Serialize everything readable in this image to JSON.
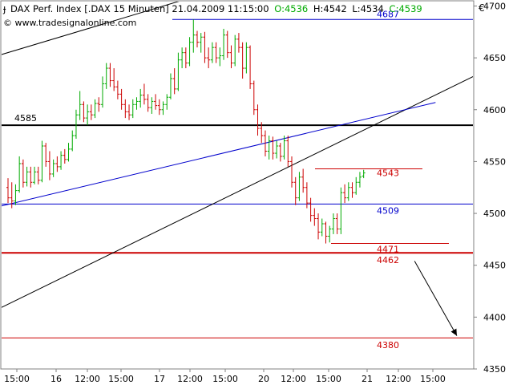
{
  "header": {
    "title": "DAX Perf. Index [.DAX  15 Minuten] 21.04.2009 11:15:00",
    "open": "O:4536",
    "high": "H:4542",
    "low": "L:4534",
    "close": "C:4539",
    "source": "© www.tradesignalonline.com",
    "currency": "€",
    "colors": {
      "open": "#00aa00",
      "close": "#00aa00",
      "text": "#000000"
    }
  },
  "chart_data": {
    "type": "ohlc",
    "ylim": [
      4350,
      4705
    ],
    "y_ticks": [
      4350,
      4400,
      4450,
      4500,
      4550,
      4600,
      4650,
      4700
    ],
    "x_ticks": [
      "15:00",
      "16",
      "12:00",
      "15:00",
      "17",
      "12:00",
      "15:00",
      "20",
      "12:00",
      "15:00",
      "21",
      "12:00",
      "15:00"
    ],
    "colors": {
      "up": "#00aa00",
      "down": "#cc0000"
    },
    "bars": [
      {
        "o": 4525,
        "h": 4534,
        "l": 4510,
        "c": 4515
      },
      {
        "o": 4515,
        "h": 4530,
        "l": 4505,
        "c": 4512
      },
      {
        "o": 4512,
        "h": 4528,
        "l": 4508,
        "c": 4522
      },
      {
        "o": 4522,
        "h": 4555,
        "l": 4520,
        "c": 4548
      },
      {
        "o": 4548,
        "h": 4552,
        "l": 4525,
        "c": 4530
      },
      {
        "o": 4530,
        "h": 4545,
        "l": 4526,
        "c": 4540
      },
      {
        "o": 4540,
        "h": 4545,
        "l": 4525,
        "c": 4530
      },
      {
        "o": 4530,
        "h": 4545,
        "l": 4528,
        "c": 4540
      },
      {
        "o": 4540,
        "h": 4545,
        "l": 4528,
        "c": 4532
      },
      {
        "o": 4532,
        "h": 4570,
        "l": 4530,
        "c": 4565
      },
      {
        "o": 4565,
        "h": 4568,
        "l": 4545,
        "c": 4550
      },
      {
        "o": 4550,
        "h": 4560,
        "l": 4532,
        "c": 4538
      },
      {
        "o": 4538,
        "h": 4552,
        "l": 4535,
        "c": 4548
      },
      {
        "o": 4548,
        "h": 4555,
        "l": 4540,
        "c": 4545
      },
      {
        "o": 4545,
        "h": 4560,
        "l": 4542,
        "c": 4556
      },
      {
        "o": 4556,
        "h": 4562,
        "l": 4548,
        "c": 4552
      },
      {
        "o": 4552,
        "h": 4568,
        "l": 4550,
        "c": 4562
      },
      {
        "o": 4562,
        "h": 4580,
        "l": 4560,
        "c": 4575
      },
      {
        "o": 4575,
        "h": 4600,
        "l": 4572,
        "c": 4595
      },
      {
        "o": 4595,
        "h": 4618,
        "l": 4590,
        "c": 4605
      },
      {
        "o": 4605,
        "h": 4608,
        "l": 4588,
        "c": 4592
      },
      {
        "o": 4592,
        "h": 4605,
        "l": 4585,
        "c": 4598
      },
      {
        "o": 4598,
        "h": 4605,
        "l": 4590,
        "c": 4595
      },
      {
        "o": 4595,
        "h": 4610,
        "l": 4592,
        "c": 4606
      },
      {
        "o": 4606,
        "h": 4612,
        "l": 4598,
        "c": 4605
      },
      {
        "o": 4605,
        "h": 4632,
        "l": 4602,
        "c": 4625
      },
      {
        "o": 4625,
        "h": 4645,
        "l": 4620,
        "c": 4640
      },
      {
        "o": 4640,
        "h": 4645,
        "l": 4622,
        "c": 4628
      },
      {
        "o": 4628,
        "h": 4640,
        "l": 4618,
        "c": 4622
      },
      {
        "o": 4622,
        "h": 4628,
        "l": 4610,
        "c": 4615
      },
      {
        "o": 4615,
        "h": 4620,
        "l": 4600,
        "c": 4605
      },
      {
        "o": 4605,
        "h": 4610,
        "l": 4592,
        "c": 4598
      },
      {
        "o": 4598,
        "h": 4605,
        "l": 4590,
        "c": 4595
      },
      {
        "o": 4595,
        "h": 4610,
        "l": 4592,
        "c": 4605
      },
      {
        "o": 4605,
        "h": 4612,
        "l": 4600,
        "c": 4608
      },
      {
        "o": 4608,
        "h": 4620,
        "l": 4602,
        "c": 4614
      },
      {
        "o": 4614,
        "h": 4625,
        "l": 4605,
        "c": 4610
      },
      {
        "o": 4610,
        "h": 4615,
        "l": 4598,
        "c": 4602
      },
      {
        "o": 4602,
        "h": 4612,
        "l": 4596,
        "c": 4608
      },
      {
        "o": 4608,
        "h": 4615,
        "l": 4600,
        "c": 4604
      },
      {
        "o": 4604,
        "h": 4610,
        "l": 4595,
        "c": 4600
      },
      {
        "o": 4600,
        "h": 4608,
        "l": 4595,
        "c": 4605
      },
      {
        "o": 4605,
        "h": 4615,
        "l": 4600,
        "c": 4612
      },
      {
        "o": 4612,
        "h": 4635,
        "l": 4610,
        "c": 4630
      },
      {
        "o": 4630,
        "h": 4640,
        "l": 4615,
        "c": 4620
      },
      {
        "o": 4620,
        "h": 4655,
        "l": 4618,
        "c": 4648
      },
      {
        "o": 4648,
        "h": 4660,
        "l": 4640,
        "c": 4655
      },
      {
        "o": 4655,
        "h": 4660,
        "l": 4640,
        "c": 4645
      },
      {
        "o": 4645,
        "h": 4670,
        "l": 4642,
        "c": 4665
      },
      {
        "o": 4665,
        "h": 4687,
        "l": 4655,
        "c": 4672
      },
      {
        "o": 4672,
        "h": 4676,
        "l": 4660,
        "c": 4665
      },
      {
        "o": 4665,
        "h": 4674,
        "l": 4655,
        "c": 4670
      },
      {
        "o": 4670,
        "h": 4675,
        "l": 4645,
        "c": 4650
      },
      {
        "o": 4650,
        "h": 4660,
        "l": 4640,
        "c": 4648
      },
      {
        "o": 4648,
        "h": 4665,
        "l": 4645,
        "c": 4660
      },
      {
        "o": 4660,
        "h": 4665,
        "l": 4645,
        "c": 4650
      },
      {
        "o": 4650,
        "h": 4660,
        "l": 4642,
        "c": 4652
      },
      {
        "o": 4652,
        "h": 4678,
        "l": 4648,
        "c": 4672
      },
      {
        "o": 4672,
        "h": 4676,
        "l": 4650,
        "c": 4655
      },
      {
        "o": 4655,
        "h": 4662,
        "l": 4640,
        "c": 4645
      },
      {
        "o": 4645,
        "h": 4672,
        "l": 4642,
        "c": 4668
      },
      {
        "o": 4668,
        "h": 4674,
        "l": 4655,
        "c": 4660
      },
      {
        "o": 4660,
        "h": 4665,
        "l": 4630,
        "c": 4640
      },
      {
        "o": 4640,
        "h": 4665,
        "l": 4635,
        "c": 4660
      },
      {
        "o": 4660,
        "h": 4662,
        "l": 4620,
        "c": 4625
      },
      {
        "o": 4625,
        "h": 4628,
        "l": 4595,
        "c": 4600
      },
      {
        "o": 4600,
        "h": 4605,
        "l": 4575,
        "c": 4582
      },
      {
        "o": 4582,
        "h": 4588,
        "l": 4568,
        "c": 4575
      },
      {
        "o": 4575,
        "h": 4580,
        "l": 4555,
        "c": 4560
      },
      {
        "o": 4560,
        "h": 4575,
        "l": 4552,
        "c": 4570
      },
      {
        "o": 4570,
        "h": 4574,
        "l": 4552,
        "c": 4558
      },
      {
        "o": 4558,
        "h": 4570,
        "l": 4553,
        "c": 4565
      },
      {
        "o": 4565,
        "h": 4568,
        "l": 4550,
        "c": 4555
      },
      {
        "o": 4555,
        "h": 4575,
        "l": 4552,
        "c": 4570
      },
      {
        "o": 4570,
        "h": 4575,
        "l": 4545,
        "c": 4550
      },
      {
        "o": 4550,
        "h": 4555,
        "l": 4525,
        "c": 4530
      },
      {
        "o": 4530,
        "h": 4535,
        "l": 4508,
        "c": 4515
      },
      {
        "o": 4515,
        "h": 4540,
        "l": 4512,
        "c": 4535
      },
      {
        "o": 4535,
        "h": 4543,
        "l": 4520,
        "c": 4525
      },
      {
        "o": 4525,
        "h": 4530,
        "l": 4505,
        "c": 4510
      },
      {
        "o": 4510,
        "h": 4515,
        "l": 4492,
        "c": 4498
      },
      {
        "o": 4498,
        "h": 4505,
        "l": 4488,
        "c": 4495
      },
      {
        "o": 4495,
        "h": 4500,
        "l": 4475,
        "c": 4482
      },
      {
        "o": 4482,
        "h": 4495,
        "l": 4478,
        "c": 4490
      },
      {
        "o": 4490,
        "h": 4492,
        "l": 4471,
        "c": 4478
      },
      {
        "o": 4478,
        "h": 4488,
        "l": 4472,
        "c": 4485
      },
      {
        "o": 4485,
        "h": 4500,
        "l": 4480,
        "c": 4495
      },
      {
        "o": 4495,
        "h": 4500,
        "l": 4480,
        "c": 4485
      },
      {
        "o": 4485,
        "h": 4525,
        "l": 4480,
        "c": 4520
      },
      {
        "o": 4520,
        "h": 4528,
        "l": 4510,
        "c": 4515
      },
      {
        "o": 4515,
        "h": 4530,
        "l": 4512,
        "c": 4525
      },
      {
        "o": 4525,
        "h": 4530,
        "l": 4515,
        "c": 4520
      },
      {
        "o": 4520,
        "h": 4535,
        "l": 4518,
        "c": 4530
      },
      {
        "o": 4530,
        "h": 4540,
        "l": 4525,
        "c": 4535
      },
      {
        "o": 4536,
        "h": 4542,
        "l": 4534,
        "c": 4539
      }
    ],
    "horizontal_lines": [
      {
        "value": 4687,
        "label": "4687",
        "color": "#0000cc"
      },
      {
        "value": 4585,
        "label": "4585",
        "color": "#000000"
      },
      {
        "value": 4543,
        "label": "4543",
        "color": "#cc0000"
      },
      {
        "value": 4509,
        "label": "4509",
        "color": "#0000cc"
      },
      {
        "value": 4471,
        "label": "4471",
        "color": "#cc0000"
      },
      {
        "value": 4462,
        "label": "4462",
        "color": "#cc0000"
      },
      {
        "value": 4380,
        "label": "4380",
        "color": "#cc0000"
      }
    ],
    "trend_lines": [
      {
        "from": [
          0,
          4653
        ],
        "to": [
          84,
          4747
        ],
        "color": "#000000"
      },
      {
        "from": [
          0,
          4409
        ],
        "to": [
          128,
          4641
        ],
        "color": "#000000"
      },
      {
        "from": [
          0,
          4507
        ],
        "to": [
          113,
          4607
        ],
        "color": "#0000cc"
      }
    ],
    "arrow": {
      "from": [
        110,
        4454
      ],
      "to": [
        118,
        4382
      ],
      "color": "#000000"
    }
  }
}
